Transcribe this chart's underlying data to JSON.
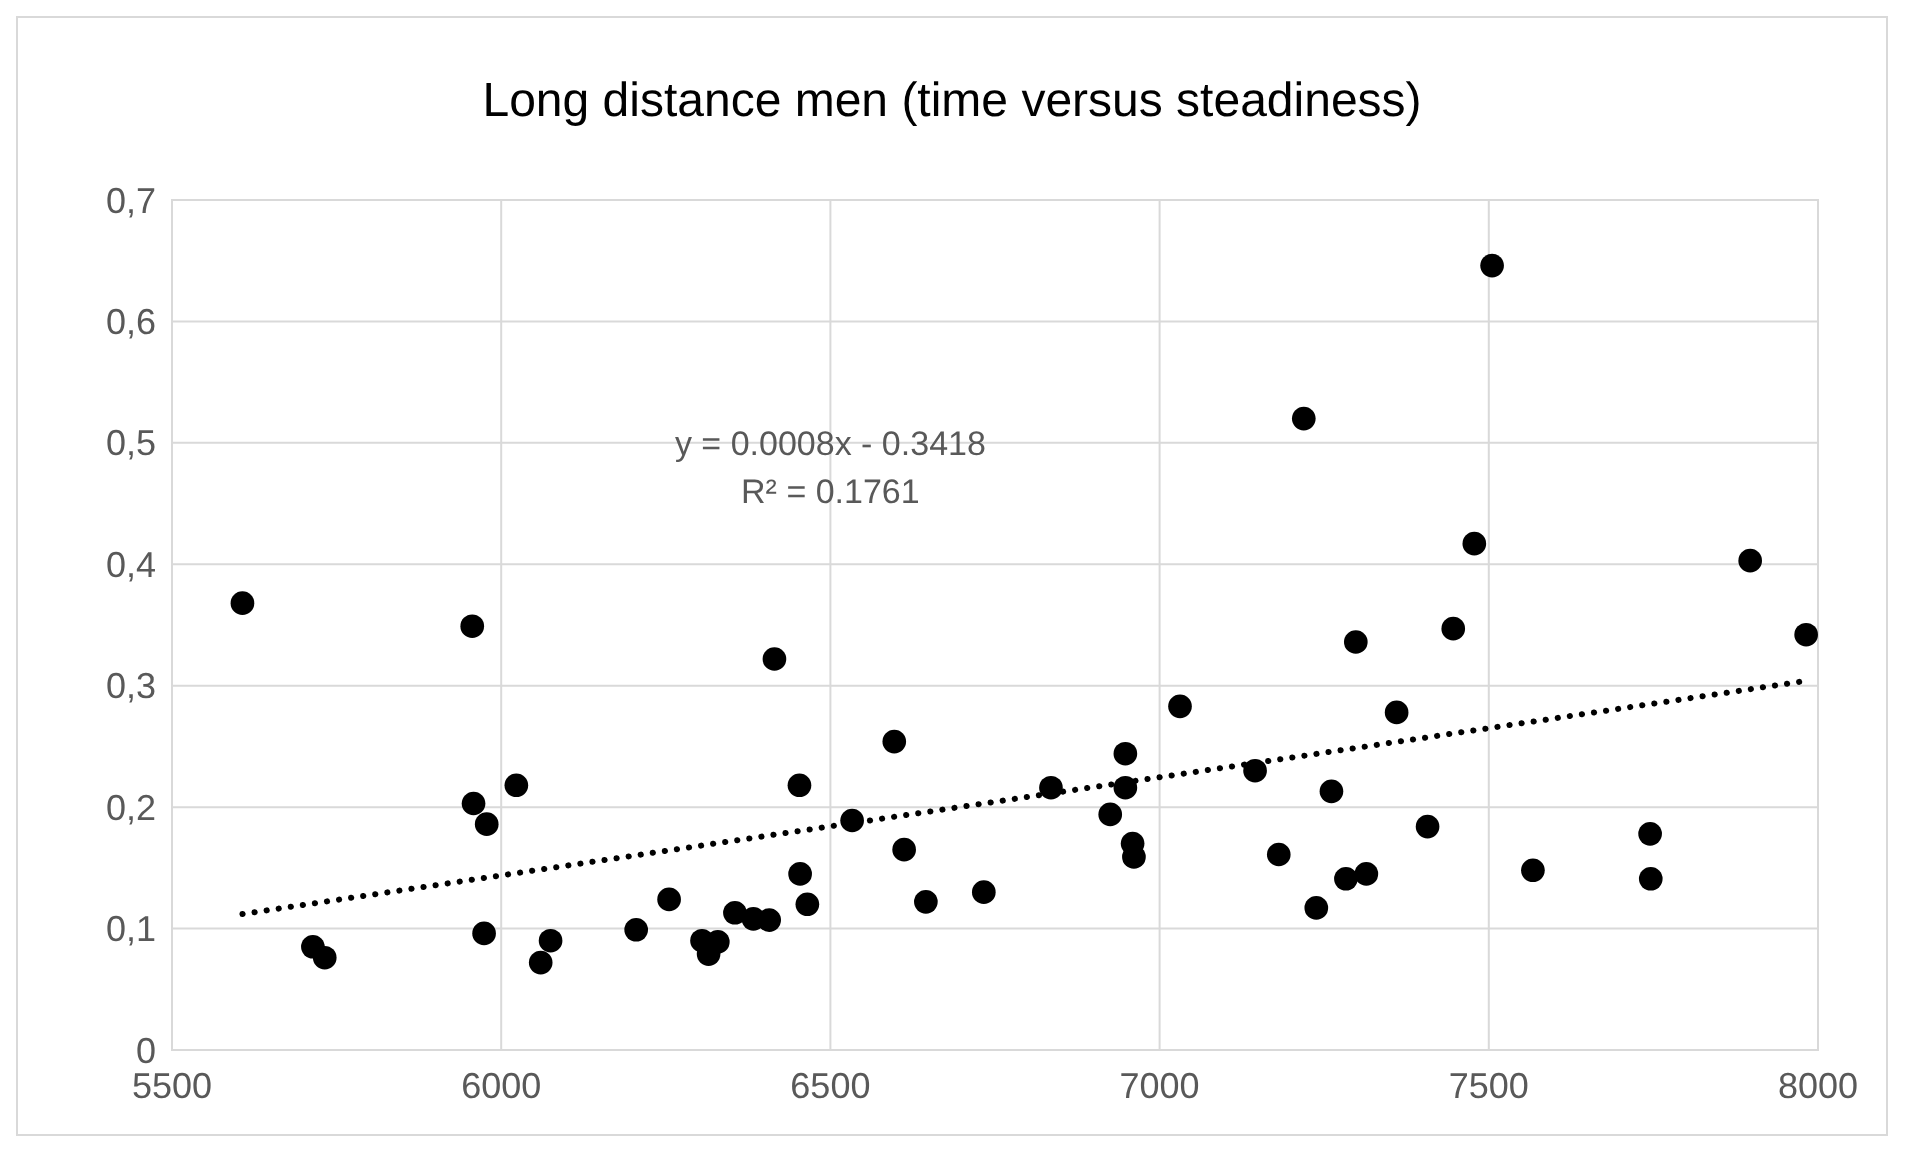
{
  "chart_data": {
    "type": "scatter",
    "title": "Long distance men (time versus steadiness)",
    "annotations": [
      "y = 0.0008x - 0.3418",
      "R² = 0.1761"
    ],
    "xlim": [
      5500,
      8000
    ],
    "xticks": [
      5500,
      6000,
      6500,
      7000,
      7500,
      8000
    ],
    "ylim": [
      0,
      0.7
    ],
    "yticks": [
      0,
      {
        "value": 0.1,
        "label": "0,1"
      },
      {
        "value": 0.2,
        "label": "0,2"
      },
      {
        "value": 0.3,
        "label": "0,3"
      },
      {
        "value": 0.4,
        "label": "0,4"
      },
      {
        "value": 0.5,
        "label": "0,5"
      },
      {
        "value": 0.6,
        "label": "0,6"
      },
      {
        "value": 0.7,
        "label": "0,7"
      }
    ],
    "grid": true,
    "series": [
      {
        "color": "#000000",
        "marker": "circle",
        "x": [
          5607,
          5714,
          5732,
          5956,
          5958,
          5978,
          5974,
          6023,
          6060,
          6075,
          6205,
          6255,
          6305,
          6315,
          6329,
          6355,
          6383,
          6407,
          6415,
          6453,
          6454,
          6465,
          6533,
          6597,
          6612,
          6645,
          6733,
          6835,
          6925,
          6948,
          6948,
          6959,
          6961,
          7031,
          7145,
          7181,
          7238,
          7261,
          7283,
          7314,
          7298,
          7360,
          7407,
          7446,
          7567,
          7745,
          7746,
          7982,
          7897,
          7505,
          7219,
          7478
        ],
        "values": [
          0.368,
          0.085,
          0.076,
          0.349,
          0.203,
          0.186,
          0.096,
          0.218,
          0.072,
          0.09,
          0.099,
          0.124,
          0.09,
          0.079,
          0.089,
          0.113,
          0.108,
          0.107,
          0.322,
          0.218,
          0.145,
          0.12,
          0.189,
          0.254,
          0.165,
          0.122,
          0.13,
          0.216,
          0.194,
          0.244,
          0.216,
          0.17,
          0.159,
          0.283,
          0.23,
          0.161,
          0.117,
          0.213,
          0.141,
          0.145,
          0.336,
          0.278,
          0.184,
          0.347,
          0.148,
          0.178,
          0.141,
          0.342,
          0.403,
          0.646,
          0.52,
          0.417
        ]
      },
      {
        "type": "line",
        "color": "#000000",
        "line_style": "dotted",
        "marker": "none",
        "x": [
          5607,
          7982
        ],
        "values": [
          0.112,
          0.304
        ]
      }
    ]
  }
}
